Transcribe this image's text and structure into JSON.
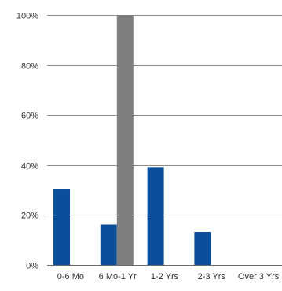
{
  "chart_data": {
    "type": "bar",
    "categories": [
      "0-6 Mo",
      "6 Mo-1 Yr",
      "1-2 Yrs",
      "2-3 Yrs",
      "Over 3 Yrs"
    ],
    "series": [
      {
        "values": [
          30.5,
          16.2,
          39.2,
          13.2,
          0
        ],
        "color": "#0B4E9A"
      },
      {
        "values": [
          0,
          100,
          0,
          0,
          0
        ],
        "color": "#7F7F7F"
      }
    ],
    "y_ticks": [
      "0%",
      "20%",
      "40%",
      "60%",
      "80%",
      "100%"
    ],
    "ylim": [
      0,
      100
    ],
    "grid": true,
    "legend": "none",
    "title": "",
    "xlabel": "",
    "ylabel": ""
  }
}
